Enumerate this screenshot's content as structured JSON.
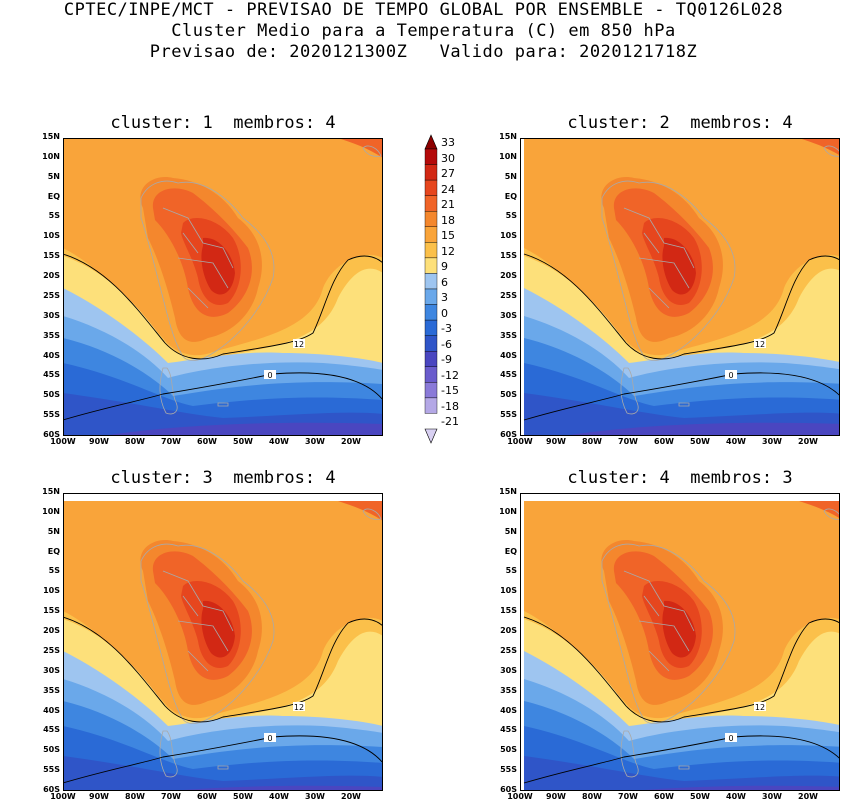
{
  "header": {
    "line1": "CPTEC/INPE/MCT - PREVISAO DE TEMPO GLOBAL POR ENSEMBLE - TQ0126L028",
    "line2": "Cluster Medio para a Temperatura (C) em 850 hPa",
    "line3": "Previsao de: 2020121300Z   Valido para: 2020121718Z"
  },
  "panels": [
    {
      "title": "cluster: 1  membros: 4"
    },
    {
      "title": "cluster: 2  membros: 4"
    },
    {
      "title": "cluster: 3  membros: 4"
    },
    {
      "title": "cluster: 4  membros: 3"
    }
  ],
  "axes": {
    "lat_labels": [
      "15N",
      "10N",
      "5N",
      "EQ",
      "5S",
      "10S",
      "15S",
      "20S",
      "25S",
      "30S",
      "35S",
      "40S",
      "45S",
      "50S",
      "55S",
      "60S"
    ],
    "lon_labels": [
      "100W",
      "90W",
      "80W",
      "70W",
      "60W",
      "50W",
      "40W",
      "30W",
      "20W"
    ]
  },
  "contour_labels": {
    "warm": "12",
    "cold": "0"
  },
  "colorbar": {
    "levels": [
      "33",
      "30",
      "27",
      "24",
      "21",
      "18",
      "15",
      "12",
      "9",
      "6",
      "3",
      "0",
      "-3",
      "-6",
      "-9",
      "-12",
      "-15",
      "-18",
      "-21"
    ],
    "colors": [
      "#8c0000",
      "#b40a0a",
      "#d22814",
      "#e6461e",
      "#f06428",
      "#f4872d",
      "#f9a43a",
      "#fbc04a",
      "#fde07a",
      "#9ec5f0",
      "#6aa8ea",
      "#3e86e0",
      "#2a6ad6",
      "#2f55c8",
      "#4a46c0",
      "#6a5ccc",
      "#8a7ad8",
      "#b4a8e6",
      "#d8d0f2"
    ]
  }
}
